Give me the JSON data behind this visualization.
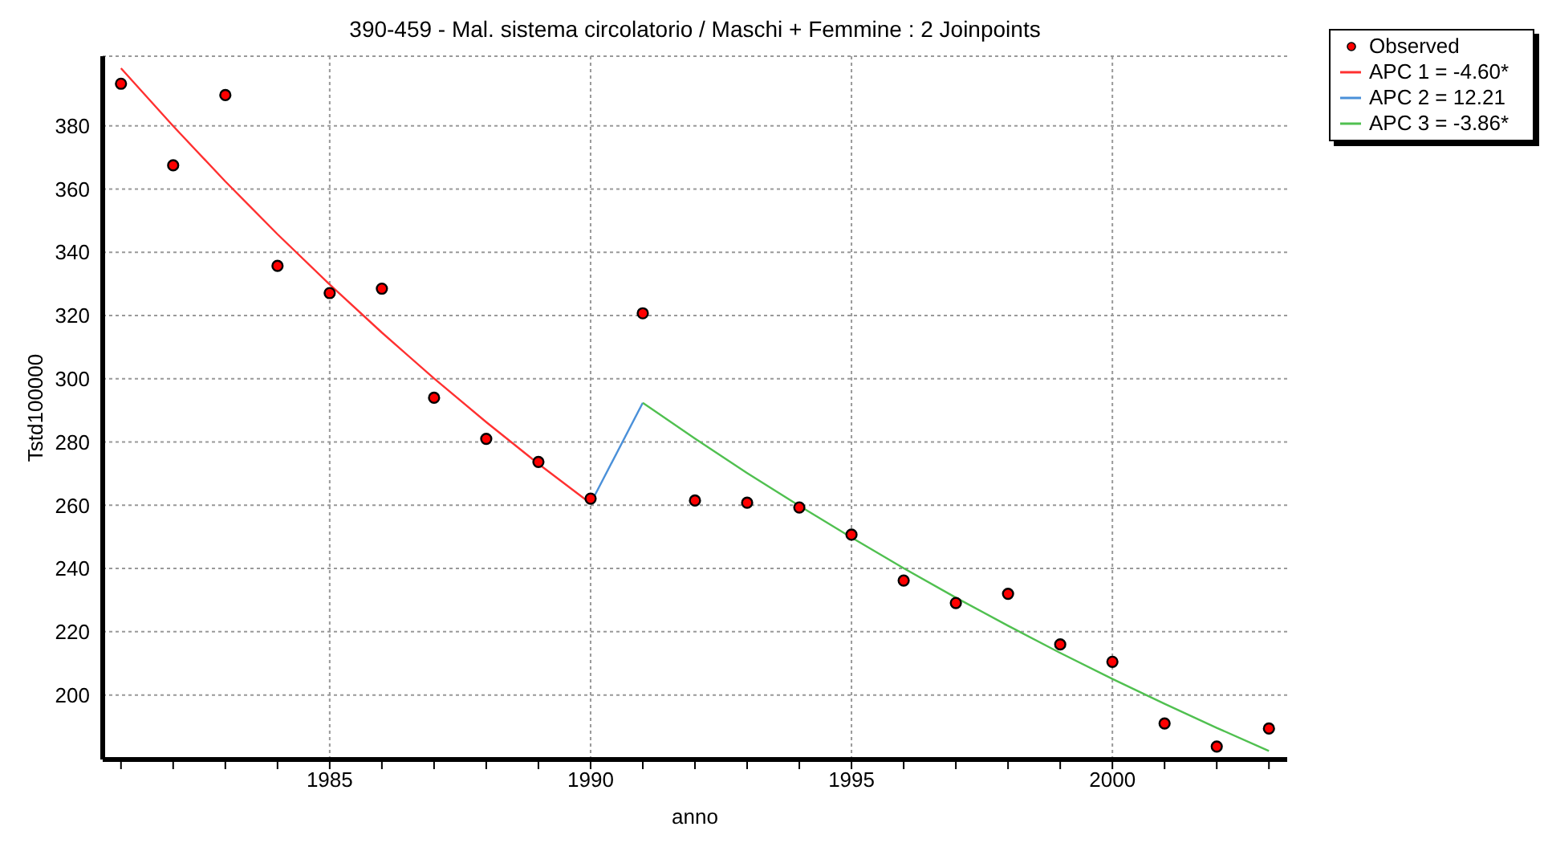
{
  "chart_data": {
    "type": "scatter",
    "title": "390-459 - Mal. sistema circolatorio / Maschi + Femmine : 2 Joinpoints",
    "xlabel": "anno",
    "ylabel": "Tstd100000",
    "xlim": [
      1980.65,
      2003.35
    ],
    "xticks": [
      {
        "value": 1981,
        "label": null
      },
      {
        "value": 1982,
        "label": null
      },
      {
        "value": 1983,
        "label": null
      },
      {
        "value": 1984,
        "label": null
      },
      1985,
      {
        "value": 1986,
        "label": null
      },
      {
        "value": 1987,
        "label": null
      },
      {
        "value": 1988,
        "label": null
      },
      {
        "value": 1989,
        "label": null
      },
      1990,
      {
        "value": 1991,
        "label": null
      },
      {
        "value": 1992,
        "label": null
      },
      {
        "value": 1993,
        "label": null
      },
      {
        "value": 1994,
        "label": null
      },
      1995,
      {
        "value": 1996,
        "label": null
      },
      {
        "value": 1997,
        "label": null
      },
      {
        "value": 1998,
        "label": null
      },
      {
        "value": 1999,
        "label": null
      },
      2000,
      {
        "value": 2001,
        "label": null
      },
      {
        "value": 2002,
        "label": null
      },
      {
        "value": 2003,
        "label": null
      }
    ],
    "ylim": [
      179.6,
      402
    ],
    "yticks": [
      200,
      220,
      240,
      260,
      280,
      300,
      320,
      340,
      360,
      380
    ],
    "grid": true,
    "legend": "top right",
    "marker": "circle",
    "series": [
      {
        "name": "Observed",
        "color": "#ff0000",
        "x": [
          1981,
          1982,
          1983,
          1984,
          1985,
          1986,
          1987,
          1988,
          1989,
          1990,
          1991,
          1992,
          1993,
          1994,
          1995,
          1996,
          1997,
          1998,
          1999,
          2000,
          2001,
          2002,
          2003
        ],
        "values": [
          393.3,
          367.5,
          389.7,
          335.7,
          327.1,
          328.5,
          294,
          281,
          273.7,
          262.1,
          320.7,
          261.5,
          260.8,
          259.3,
          250.7,
          236.2,
          229.1,
          232,
          216,
          210.5,
          191,
          183.7,
          189.4
        ]
      },
      {
        "name": "APC 1 = -4.60*",
        "type": "line",
        "marker": "none",
        "color": "#ff3030",
        "x": [
          1981,
          1982,
          1983,
          1984,
          1985,
          1986,
          1987,
          1988,
          1989,
          1990
        ],
        "values": [
          398.2,
          379.9,
          362.4,
          345.7,
          329.8,
          314.6,
          300.1,
          286.3,
          273.1,
          260.6
        ]
      },
      {
        "name": "APC 2 = 12.21",
        "type": "line",
        "marker": "none",
        "color": "#4a90d9",
        "x": [
          1990,
          1991
        ],
        "values": [
          260.6,
          292.4
        ]
      },
      {
        "name": "APC 3 = -3.86*",
        "type": "line",
        "marker": "none",
        "color": "#50c050",
        "x": [
          1991,
          1992,
          1993,
          1994,
          1995,
          1996,
          1997,
          1998,
          1999,
          2000,
          2001,
          2002,
          2003
        ],
        "values": [
          292.4,
          281.1,
          270.2,
          259.8,
          249.8,
          240.1,
          230.8,
          221.9,
          213.3,
          205.1,
          197.2,
          189.6,
          182.3
        ]
      }
    ]
  }
}
